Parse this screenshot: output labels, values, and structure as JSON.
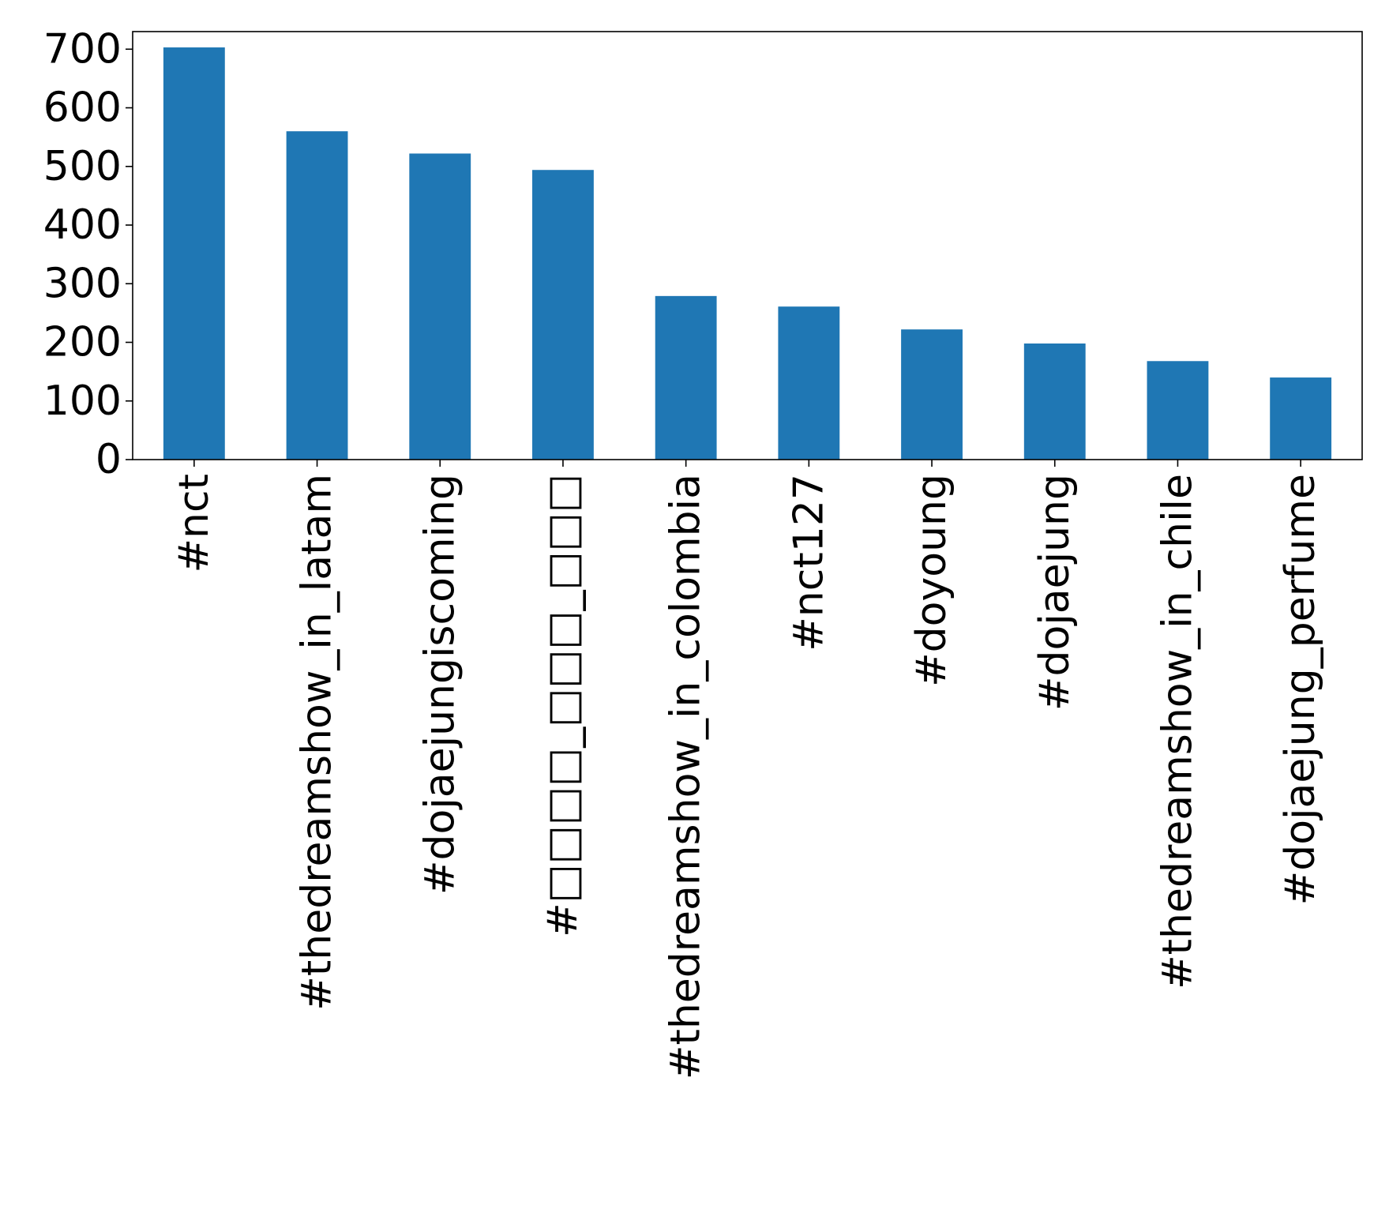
{
  "chart_data": {
    "type": "bar",
    "categories": [
      "#nct",
      "#thedreamshow_in_latam",
      "#dojaejungiscoming",
      "#□□□□_□□□_□□□",
      "#thedreamshow_in_colombia",
      "#nct127",
      "#doyoung",
      "#dojaejung",
      "#thedreamshow_in_chile",
      "#dojaejung_perfume"
    ],
    "values": [
      703,
      560,
      522,
      494,
      279,
      261,
      222,
      198,
      168,
      140
    ],
    "title": "",
    "xlabel": "",
    "ylabel": "",
    "ylim": [
      0,
      730
    ],
    "yticks": [
      0,
      100,
      200,
      300,
      400,
      500,
      600,
      700
    ],
    "grid": false,
    "bar_color": "#1f77b4"
  }
}
